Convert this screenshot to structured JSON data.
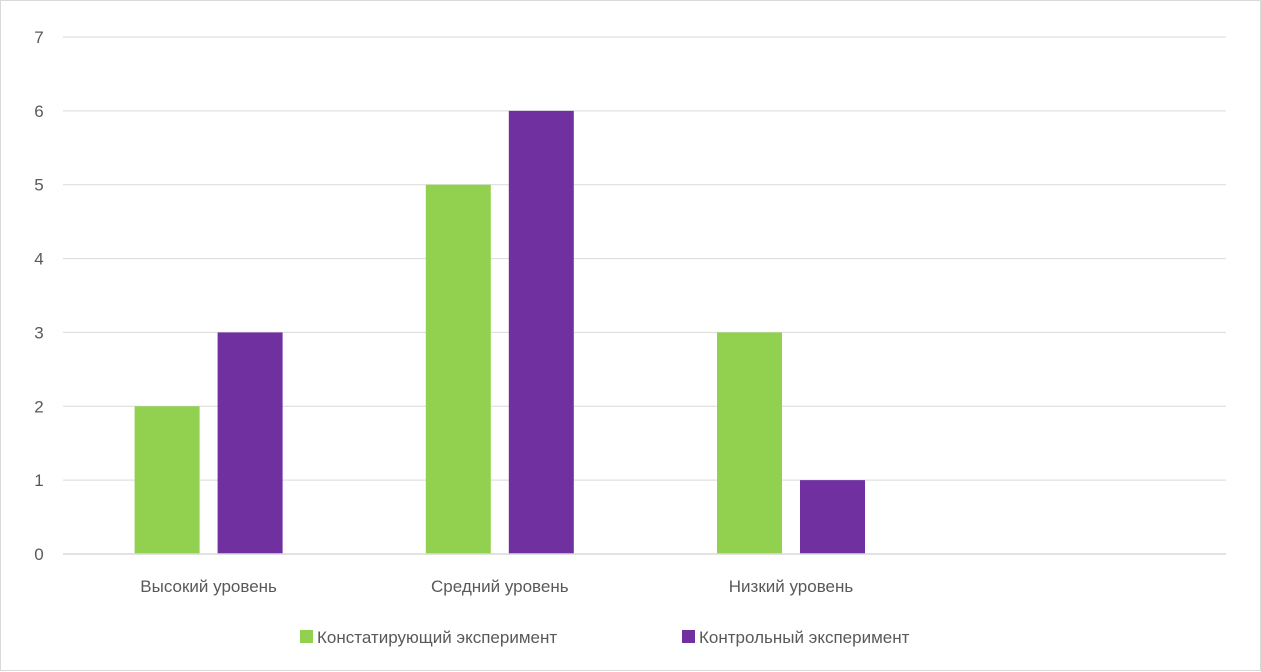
{
  "chart_data": {
    "type": "bar",
    "categories": [
      "Высокий уровень",
      "Средний уровень",
      "Низкий уровень"
    ],
    "series": [
      {
        "name": "Констатирующий эксперимент",
        "values": [
          2,
          5,
          3
        ],
        "color": "#92d050"
      },
      {
        "name": "Контрольный эксперимент",
        "values": [
          3,
          6,
          1
        ],
        "color": "#7030a0"
      }
    ],
    "yticks": [
      "0",
      "1",
      "2",
      "3",
      "4",
      "5",
      "6",
      "7"
    ],
    "ylim": [
      0,
      7
    ],
    "grid": true,
    "legend_position": "bottom"
  }
}
